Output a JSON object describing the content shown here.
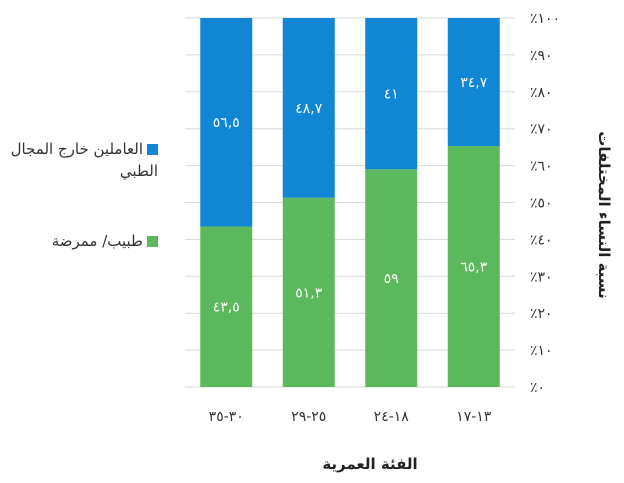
{
  "chart_data": {
    "type": "bar",
    "stacked": true,
    "categories": [
      "١٣-١٧",
      "١٨-٢٤",
      "٢٥-٢٩",
      "٣٠-٣٥"
    ],
    "series": [
      {
        "name": "طبيب/ ممرضة",
        "color": "#5cb85c",
        "values": [
          65.3,
          59,
          51.3,
          43.5
        ],
        "labels": [
          "٦٥,٣",
          "٥٩",
          "٥١,٣",
          "٤٣,٥"
        ]
      },
      {
        "name": "العاملين خارج المجال الطبي",
        "color": "#1186d4",
        "values": [
          34.7,
          41,
          48.7,
          56.5
        ],
        "labels": [
          "٣٤,٧",
          "٤١",
          "٤٨,٧",
          "٥٦,٥"
        ]
      }
    ],
    "yticks": [
      "٪٠",
      "٪١٠",
      "٪٢٠",
      "٪٣٠",
      "٪٤٠",
      "٪٥٠",
      "٪٦٠",
      "٪٧٠",
      "٪٨٠",
      "٪٩٠",
      "٪١٠٠"
    ],
    "ylim": [
      0,
      100
    ],
    "xlabel": "الفئة العمرية",
    "ylabel": "نسبة النساء المختلفات",
    "grid": true,
    "legend_position": "left"
  }
}
